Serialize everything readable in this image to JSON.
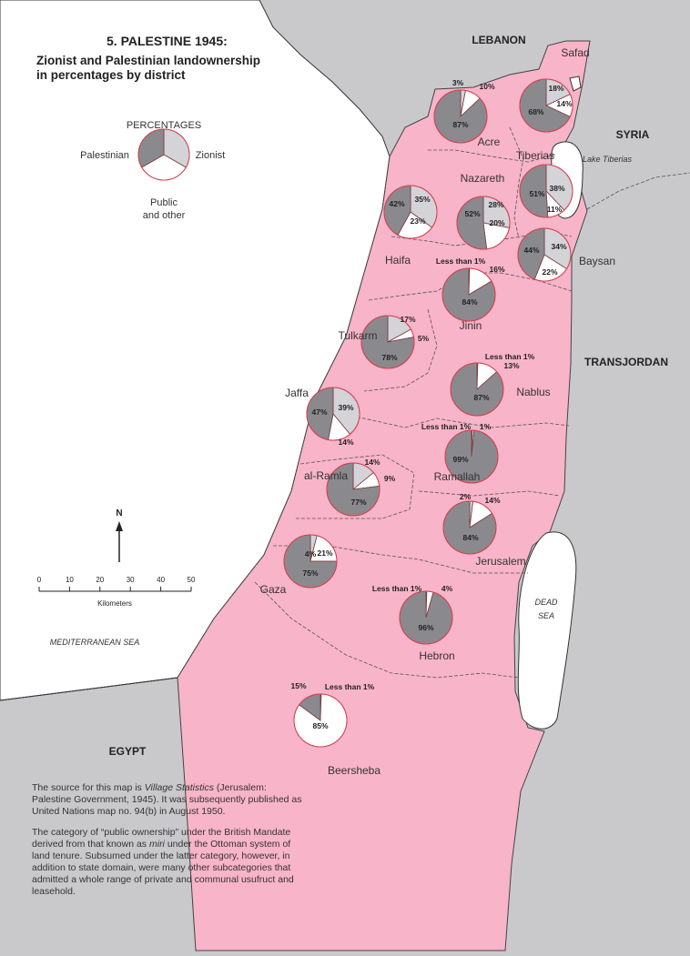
{
  "title": {
    "main": "5. PALESTINE 1945:",
    "subtitle_line1": "Zionist and Palestinian landownership",
    "subtitle_line2": "in percentages by district"
  },
  "legend": {
    "heading": "PERCENTAGES",
    "palestinian": "Palestinian",
    "zionist": "Zionist",
    "public_line1": "Public",
    "public_line2": "and other"
  },
  "colors": {
    "palestine_land": "#f8b4c8",
    "neighbor_land": "#c9c9cc",
    "sea": "#ffffff",
    "palestinian": "#8a8a8e",
    "zionist": "#d3d3d8",
    "public": "#ffffff",
    "pie_outline": "#d9404f"
  },
  "countries": {
    "lebanon": "LEBANON",
    "syria": "SYRIA",
    "transjordan": "TRANSJORDAN",
    "egypt": "EGYPT"
  },
  "water": {
    "mediterranean": "MEDITERRANEAN SEA",
    "lake_tiberias": "Lake Tiberias",
    "dead_sea_1": "DEAD",
    "dead_sea_2": "SEA"
  },
  "districts": [
    {
      "name": "Safad",
      "palestinian": 68,
      "zionist": 18,
      "public": 14,
      "labels": {
        "palestinian": "68%",
        "zionist": "18%",
        "public": "14%"
      }
    },
    {
      "name": "Acre",
      "palestinian": 87,
      "zionist": 3,
      "public": 10,
      "labels": {
        "palestinian": "87%",
        "zionist": "3%",
        "public": "10%"
      }
    },
    {
      "name": "Tiberias",
      "palestinian": 51,
      "zionist": 38,
      "public": 11,
      "labels": {
        "palestinian": "51%",
        "zionist": "38%",
        "public": "11%"
      }
    },
    {
      "name": "Haifa",
      "palestinian": 42,
      "zionist": 35,
      "public": 23,
      "labels": {
        "palestinian": "42%",
        "zionist": "35%",
        "public": "23%"
      }
    },
    {
      "name": "Nazareth",
      "palestinian": 52,
      "zionist": 28,
      "public": 20,
      "labels": {
        "palestinian": "52%",
        "zionist": "28%",
        "public": "20%"
      }
    },
    {
      "name": "Baysan",
      "palestinian": 44,
      "zionist": 34,
      "public": 22,
      "labels": {
        "palestinian": "44%",
        "zionist": "34%",
        "public": "22%"
      }
    },
    {
      "name": "Jinin",
      "palestinian": 84,
      "zionist": 0.5,
      "public": 16,
      "labels": {
        "palestinian": "84%",
        "zionist": "Less than 1%",
        "public": "16%"
      }
    },
    {
      "name": "Tulkarm",
      "palestinian": 78,
      "zionist": 17,
      "public": 5,
      "labels": {
        "palestinian": "78%",
        "zionist": "17%",
        "public": "5%"
      }
    },
    {
      "name": "Nablus",
      "palestinian": 87,
      "zionist": 0.5,
      "public": 13,
      "labels": {
        "palestinian": "87%",
        "zionist": "Less than 1%",
        "public": "13%"
      }
    },
    {
      "name": "Jaffa",
      "palestinian": 47,
      "zionist": 39,
      "public": 14,
      "labels": {
        "palestinian": "47%",
        "zionist": "39%",
        "public": "14%"
      }
    },
    {
      "name": "Ramallah",
      "palestinian": 99,
      "zionist": 0.5,
      "public": 1,
      "labels": {
        "palestinian": "99%",
        "zionist": "Less than 1%",
        "public": "1%"
      }
    },
    {
      "name": "al-Ramla",
      "palestinian": 77,
      "zionist": 14,
      "public": 9,
      "labels": {
        "palestinian": "77%",
        "zionist": "14%",
        "public": "9%"
      }
    },
    {
      "name": "Jerusalem",
      "palestinian": 84,
      "zionist": 2,
      "public": 14,
      "labels": {
        "palestinian": "84%",
        "zionist": "2%",
        "public": "14%"
      }
    },
    {
      "name": "Gaza",
      "palestinian": 75,
      "zionist": 4,
      "public": 21,
      "labels": {
        "palestinian": "75%",
        "zionist": "4%",
        "public": "21%"
      }
    },
    {
      "name": "Hebron",
      "palestinian": 96,
      "zionist": 0.5,
      "public": 4,
      "labels": {
        "palestinian": "96%",
        "zionist": "Less than 1%",
        "public": "4%"
      }
    },
    {
      "name": "Beersheba",
      "palestinian": 15,
      "zionist": 0.5,
      "public": 85,
      "labels": {
        "palestinian": "15%",
        "zionist": "Less than 1%",
        "public": "85%"
      }
    }
  ],
  "north_arrow": "N",
  "scale": {
    "ticks": [
      "0",
      "10",
      "20",
      "30",
      "40",
      "50"
    ],
    "unit": "Kilometers"
  },
  "note": {
    "p1_a": "The source for this map is ",
    "p1_italic": "Village Statistics",
    "p1_b": " (Jerusalem: Palestine Government, 1945). It was subsequently published as United Nations map no. 94(b) in August 1950.",
    "p2_a": "The category of “public ownership” under the British Mandate derived from that known as ",
    "p2_italic": "miri",
    "p2_b": " under the Ottoman system of land tenure. Subsumed under the latter category, however, in addition to state domain, were many other subcategories that admitted a whole range of private and communal usufruct and leasehold."
  }
}
